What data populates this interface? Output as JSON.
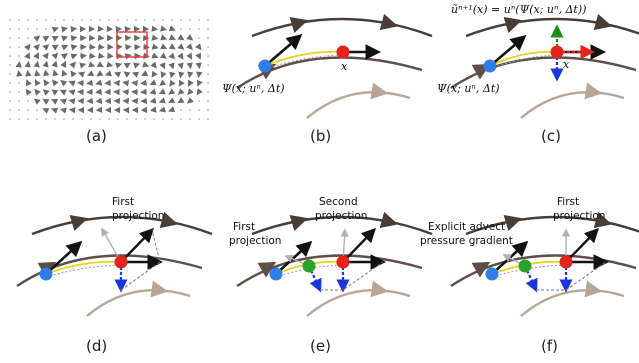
{
  "panels": [
    {
      "id": "a",
      "caption": "(a)"
    },
    {
      "id": "b",
      "caption": "(b)",
      "math": "Ψ(x; uⁿ, Δt)",
      "point_label": "x"
    },
    {
      "id": "c",
      "caption": "(c)",
      "math": "Ψ(x; uⁿ, Δt)",
      "point_label": "x",
      "formula": "ũⁿ⁺¹(x) = uⁿ(Ψ(x; uⁿ, Δt))"
    },
    {
      "id": "d",
      "caption": "(d)",
      "labels": [
        "First",
        "projection"
      ]
    },
    {
      "id": "e",
      "caption": "(e)",
      "labels_left": [
        "First",
        "projection"
      ],
      "labels_right": [
        "Second",
        "projection"
      ]
    },
    {
      "id": "f",
      "caption": "(f)",
      "labels_left": [
        "Explicit advect",
        "pressure gradient"
      ],
      "labels_right": [
        "First",
        "projection"
      ]
    }
  ],
  "colors": {
    "flow_dark": "#4a3c36",
    "flow_mid": "#5e4e46",
    "flow_light": "#b9a593",
    "blue_point": "#2f7ee6",
    "red_point": "#e5231b",
    "green_point": "#2aa12a",
    "advection_path": "#e8d21c",
    "highlight_box": "#e53935",
    "vector_field": "#6b6b6b"
  }
}
